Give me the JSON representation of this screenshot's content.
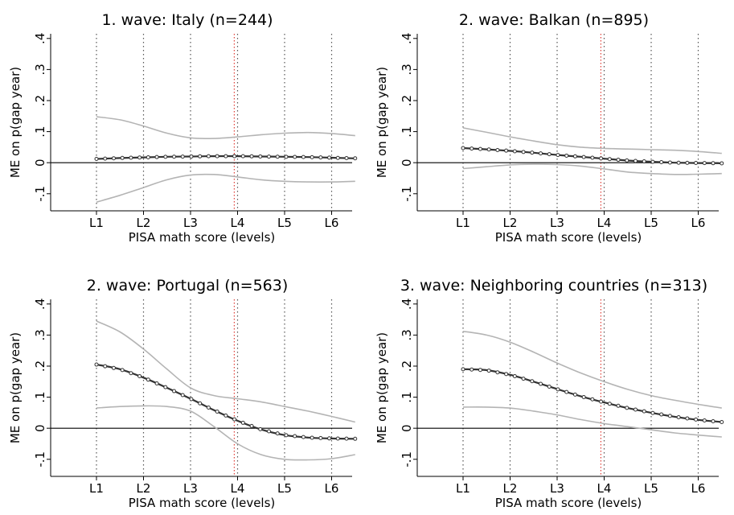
{
  "chart_data": [
    {
      "type": "line",
      "title": "1. wave: Italy (n=244)",
      "xlabel": "PISA math score (levels)",
      "ylabel": "ME on p(gap year)",
      "xticks": [
        "L1",
        "L2",
        "L3",
        "L4",
        "L5",
        "L6"
      ],
      "yticks": [
        "-.1",
        "0",
        ".1",
        ".2",
        ".3",
        ".4"
      ],
      "xlim": [
        0,
        5.97
      ],
      "ylim": [
        -0.155,
        0.415
      ],
      "red_reference_x": 2.93,
      "x": [
        0.0,
        0.5,
        1.0,
        1.5,
        2.0,
        2.5,
        3.0,
        3.5,
        4.0,
        4.5,
        5.0,
        5.5
      ],
      "estimate": [
        0.012,
        0.015,
        0.017,
        0.019,
        0.02,
        0.021,
        0.021,
        0.02,
        0.019,
        0.018,
        0.016,
        0.014
      ],
      "ci_upper": [
        0.148,
        0.138,
        0.118,
        0.095,
        0.08,
        0.078,
        0.083,
        0.09,
        0.095,
        0.097,
        0.094,
        0.087
      ],
      "ci_lower": [
        -0.127,
        -0.105,
        -0.08,
        -0.055,
        -0.04,
        -0.038,
        -0.046,
        -0.055,
        -0.06,
        -0.062,
        -0.062,
        -0.06
      ]
    },
    {
      "type": "line",
      "title": "2. wave: Balkan (n=895)",
      "xlabel": "PISA math score (levels)",
      "ylabel": "ME on p(gap year)",
      "xticks": [
        "L1",
        "L2",
        "L3",
        "L4",
        "L5",
        "L6"
      ],
      "yticks": [
        "-.1",
        "0",
        ".1",
        ".2",
        ".3",
        ".4"
      ],
      "xlim": [
        0,
        5.97
      ],
      "ylim": [
        -0.155,
        0.415
      ],
      "red_reference_x": 2.93,
      "x": [
        0.0,
        0.5,
        1.0,
        1.5,
        2.0,
        2.5,
        3.0,
        3.5,
        4.0,
        4.5,
        5.0,
        5.5
      ],
      "estimate": [
        0.047,
        0.043,
        0.038,
        0.032,
        0.025,
        0.019,
        0.013,
        0.007,
        0.003,
        0.0,
        -0.001,
        -0.002
      ],
      "ci_upper": [
        0.112,
        0.098,
        0.083,
        0.07,
        0.058,
        0.05,
        0.046,
        0.044,
        0.042,
        0.04,
        0.036,
        0.03
      ],
      "ci_lower": [
        -0.019,
        -0.013,
        -0.007,
        -0.005,
        -0.006,
        -0.011,
        -0.02,
        -0.03,
        -0.035,
        -0.038,
        -0.037,
        -0.035
      ]
    },
    {
      "type": "line",
      "title": "2. wave: Portugal (n=563)",
      "xlabel": "PISA math score (levels)",
      "ylabel": "ME on p(gap year)",
      "xticks": [
        "L1",
        "L2",
        "L3",
        "L4",
        "L5",
        "L6"
      ],
      "yticks": [
        "-.1",
        "0",
        ".1",
        ".2",
        ".3",
        ".4"
      ],
      "xlim": [
        0,
        5.97
      ],
      "ylim": [
        -0.155,
        0.415
      ],
      "red_reference_x": 2.93,
      "x": [
        0.0,
        0.5,
        1.0,
        1.5,
        2.0,
        2.5,
        3.0,
        3.5,
        4.0,
        4.5,
        5.0,
        5.5
      ],
      "estimate": [
        0.205,
        0.19,
        0.163,
        0.13,
        0.095,
        0.058,
        0.024,
        -0.004,
        -0.022,
        -0.03,
        -0.033,
        -0.034
      ],
      "ci_upper": [
        0.345,
        0.31,
        0.255,
        0.19,
        0.13,
        0.105,
        0.095,
        0.085,
        0.07,
        0.055,
        0.038,
        0.02
      ],
      "ci_lower": [
        0.065,
        0.07,
        0.072,
        0.07,
        0.055,
        0.005,
        -0.05,
        -0.085,
        -0.1,
        -0.102,
        -0.098,
        -0.085
      ]
    },
    {
      "type": "line",
      "title": "3. wave: Neighboring countries (n=313)",
      "xlabel": "PISA math score (levels)",
      "ylabel": "ME on p(gap year)",
      "xticks": [
        "L1",
        "L2",
        "L3",
        "L4",
        "L5",
        "L6"
      ],
      "yticks": [
        "-.1",
        "0",
        ".1",
        ".2",
        ".3",
        ".4"
      ],
      "xlim": [
        0,
        5.97
      ],
      "ylim": [
        -0.155,
        0.415
      ],
      "red_reference_x": 2.93,
      "x": [
        0.0,
        0.5,
        1.0,
        1.5,
        2.0,
        2.5,
        3.0,
        3.5,
        4.0,
        4.5,
        5.0,
        5.5
      ],
      "estimate": [
        0.19,
        0.187,
        0.172,
        0.15,
        0.126,
        0.103,
        0.083,
        0.065,
        0.05,
        0.037,
        0.027,
        0.02
      ],
      "ci_upper": [
        0.312,
        0.3,
        0.277,
        0.245,
        0.21,
        0.178,
        0.15,
        0.125,
        0.105,
        0.09,
        0.077,
        0.065
      ],
      "ci_lower": [
        0.068,
        0.068,
        0.065,
        0.055,
        0.043,
        0.028,
        0.015,
        0.005,
        -0.005,
        -0.015,
        -0.022,
        -0.028
      ]
    }
  ]
}
